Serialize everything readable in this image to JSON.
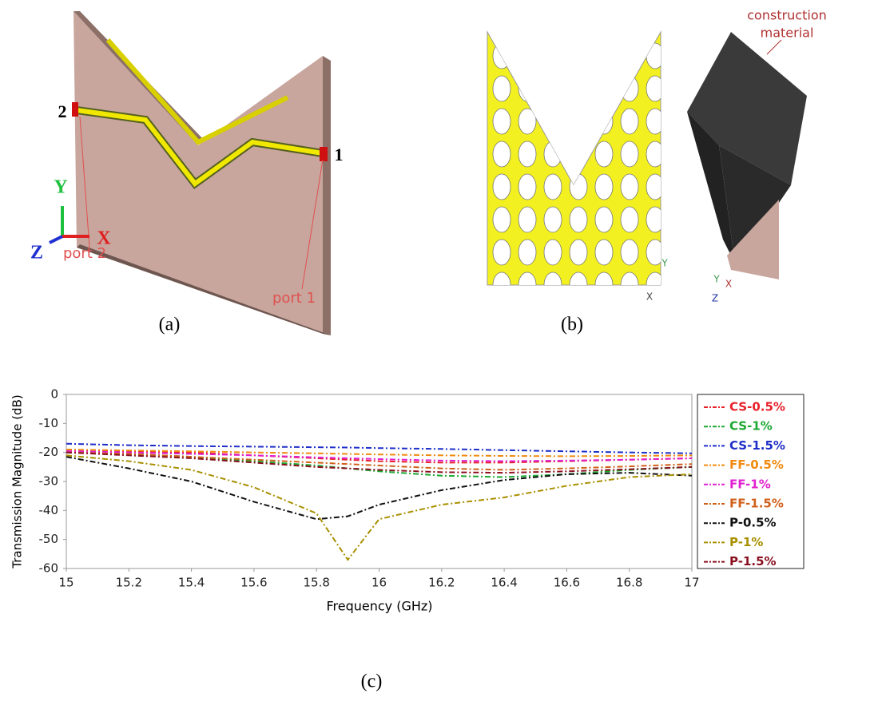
{
  "diagram_a": {
    "caption": "(a)",
    "port_numbers": [
      "2",
      "1"
    ],
    "port_names": [
      "port 2",
      "port 1"
    ],
    "axes": [
      "Y",
      "Z",
      "X"
    ]
  },
  "diagram_b": {
    "caption": "(b)",
    "callout": [
      "construction",
      "material"
    ],
    "axes": [
      "Y",
      "X",
      "Z"
    ]
  },
  "chart_caption": "(c)",
  "chart_data": {
    "type": "line",
    "xlabel": "Frequency (GHz)",
    "ylabel": "Transmission Magnitude (dB)",
    "x": [
      15,
      15.2,
      15.4,
      15.6,
      15.8,
      15.9,
      16,
      16.2,
      16.4,
      16.6,
      16.8,
      17
    ],
    "series": [
      {
        "name": "CS-0.5%",
        "color": "#e8202a",
        "values": [
          -19,
          -19.5,
          -20,
          -21,
          -22,
          -22.5,
          -23,
          -23.5,
          -23.5,
          -23,
          -22.5,
          -22
        ]
      },
      {
        "name": "CS-1%",
        "color": "#1aa830",
        "values": [
          -20,
          -20.5,
          -21.5,
          -23,
          -24.5,
          -25.5,
          -26.5,
          -28,
          -28.5,
          -27.5,
          -26,
          -25
        ]
      },
      {
        "name": "CS-1.5%",
        "color": "#1f2ec8",
        "values": [
          -17,
          -17.5,
          -17.8,
          -18,
          -18.2,
          -18.3,
          -18.5,
          -18.8,
          -19.2,
          -19.6,
          -20,
          -20.3
        ]
      },
      {
        "name": "FF-0.5%",
        "color": "#f08a10",
        "values": [
          -19,
          -19.3,
          -19.6,
          -20,
          -20.3,
          -20.5,
          -20.7,
          -21,
          -21.2,
          -21.3,
          -21.2,
          -21
        ]
      },
      {
        "name": "FF-1%",
        "color": "#e020d0",
        "values": [
          -19.5,
          -20,
          -20.5,
          -21,
          -21.7,
          -22,
          -22.3,
          -22.8,
          -23,
          -22.8,
          -22.5,
          -22
        ]
      },
      {
        "name": "FF-1.5%",
        "color": "#d0601a",
        "values": [
          -20,
          -20.5,
          -21.5,
          -22.5,
          -23.5,
          -24,
          -24.5,
          -25.5,
          -26,
          -25.5,
          -24.8,
          -24
        ]
      },
      {
        "name": "P-0.5%",
        "color": "#111111",
        "values": [
          -21.5,
          -25.5,
          -30,
          -37,
          -43,
          -42,
          -38,
          -33,
          -29.5,
          -27.5,
          -27,
          -28
        ]
      },
      {
        "name": "P-1%",
        "color": "#a89000",
        "values": [
          -21,
          -23,
          -26,
          -32,
          -41,
          -57,
          -43,
          -38,
          -35.5,
          -31.5,
          -28.5,
          -27.5
        ]
      },
      {
        "name": "P-1.5%",
        "color": "#8a1020",
        "values": [
          -20,
          -21,
          -22,
          -23.5,
          -25,
          -25.5,
          -26,
          -26.8,
          -27,
          -26.5,
          -25.8,
          -25
        ]
      }
    ],
    "xlim": [
      15,
      17
    ],
    "ylim": [
      -60,
      0
    ],
    "xticks": [
      15,
      15.2,
      15.4,
      15.6,
      15.8,
      16,
      16.2,
      16.4,
      16.6,
      16.8,
      17
    ],
    "yticks": [
      -60,
      -50,
      -40,
      -30,
      -20,
      -10,
      0
    ],
    "legend": "right"
  }
}
